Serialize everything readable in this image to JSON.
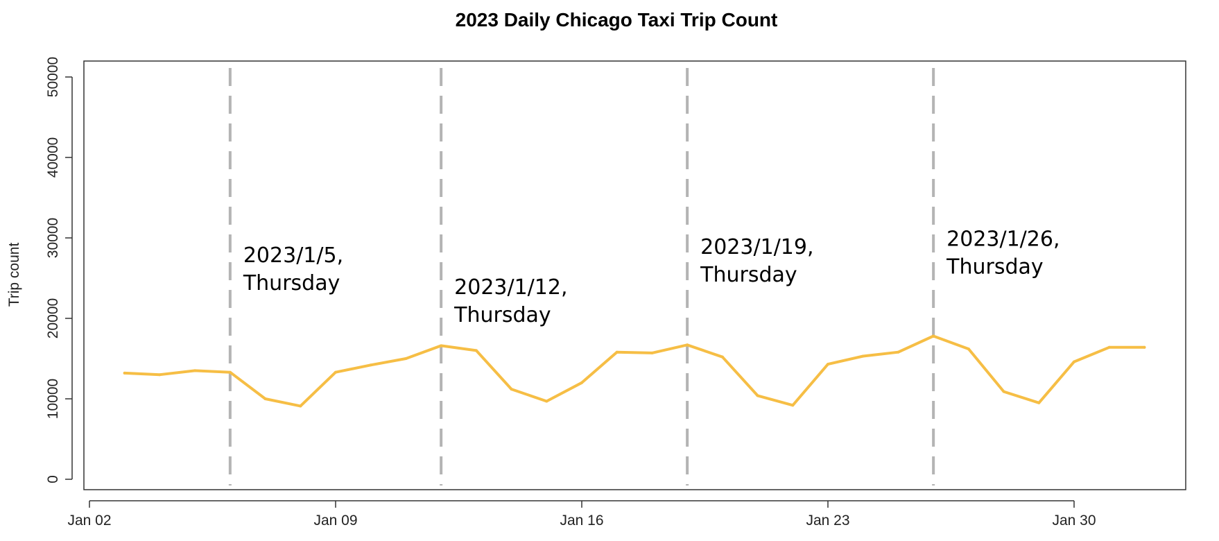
{
  "chart_data": {
    "type": "line",
    "title": "2023 Daily Chicago Taxi Trip Count",
    "xlabel": "",
    "ylabel": "Trip count",
    "x_tick_labels": [
      "Jan 02",
      "Jan 09",
      "Jan 16",
      "Jan 23",
      "Jan 30"
    ],
    "x_ticks": [
      "2023-01-02",
      "2023-01-09",
      "2023-01-16",
      "2023-01-23",
      "2023-01-30"
    ],
    "xlim": [
      "2023-01-02",
      "2023-02-01"
    ],
    "ylim": [
      0,
      50000
    ],
    "y_ticks": [
      0,
      10000,
      20000,
      30000,
      40000,
      50000
    ],
    "grid": false,
    "line_color": "#F6BE45",
    "series": [
      {
        "x": [
          "2023-01-03",
          "2023-01-04",
          "2023-01-05",
          "2023-01-06",
          "2023-01-07",
          "2023-01-08",
          "2023-01-09",
          "2023-01-10",
          "2023-01-11",
          "2023-01-12",
          "2023-01-13",
          "2023-01-14",
          "2023-01-15",
          "2023-01-16",
          "2023-01-17",
          "2023-01-18",
          "2023-01-19",
          "2023-01-20",
          "2023-01-21",
          "2023-01-22",
          "2023-01-23",
          "2023-01-24",
          "2023-01-25",
          "2023-01-26",
          "2023-01-27",
          "2023-01-28",
          "2023-01-29",
          "2023-01-30",
          "2023-01-31",
          "2023-02-01"
        ],
        "values": [
          13200,
          13000,
          13500,
          13300,
          10000,
          9100,
          13300,
          14200,
          15000,
          16600,
          16000,
          11200,
          9700,
          12000,
          15800,
          15700,
          16700,
          15200,
          10400,
          9200,
          14300,
          15300,
          15800,
          17800,
          16200,
          10900,
          9500,
          14600,
          16400,
          16400
        ]
      }
    ],
    "vlines": {
      "color": "#B4B4B4",
      "dates": [
        "2023-01-06",
        "2023-01-12",
        "2023-01-19",
        "2023-01-26"
      ]
    },
    "annotations": [
      {
        "line1": "2023/1/5,",
        "line2": "Thursday",
        "x": "2023-01-06",
        "y": 27000
      },
      {
        "line1": "2023/1/12,",
        "line2": "Thursday",
        "x": "2023-01-12",
        "y": 23000
      },
      {
        "line1": "2023/1/19,",
        "line2": "Thursday",
        "x": "2023-01-19",
        "y": 28000
      },
      {
        "line1": "2023/1/26,",
        "line2": "Thursday",
        "x": "2023-01-26",
        "y": 29000
      }
    ]
  }
}
